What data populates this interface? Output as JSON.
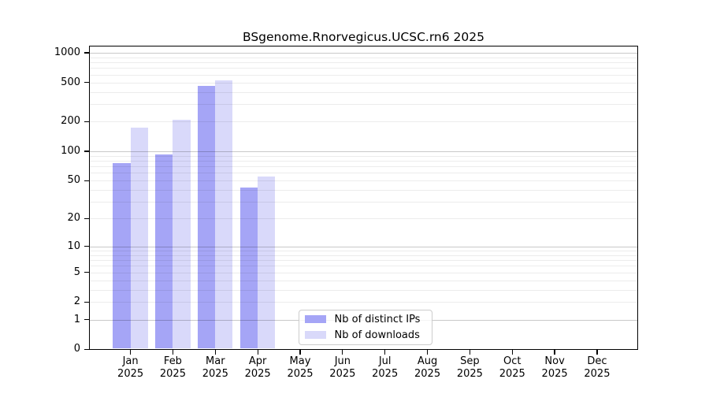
{
  "chart_data": {
    "type": "bar",
    "title": "BSgenome.Rnorvegicus.UCSC.rn6 2025",
    "categories": [
      "Jan",
      "Feb",
      "Mar",
      "Apr",
      "May",
      "Jun",
      "Jul",
      "Aug",
      "Sep",
      "Oct",
      "Nov",
      "Dec"
    ],
    "category_year": "2025",
    "series": [
      {
        "name": "Nb of distinct IPs",
        "color": "#a5a5f6",
        "values": [
          75,
          93,
          460,
          42,
          0,
          0,
          0,
          0,
          0,
          0,
          0,
          0
        ]
      },
      {
        "name": "Nb of downloads",
        "color": "#d9d9fa",
        "values": [
          173,
          208,
          529,
          55,
          0,
          0,
          0,
          0,
          0,
          0,
          0,
          0
        ]
      }
    ],
    "y_scale": "log1p",
    "y_tick_labels": [
      0,
      1,
      2,
      5,
      10,
      20,
      50,
      100,
      200,
      500,
      1000
    ],
    "y_major_gridlines": [
      1,
      10,
      100,
      1000
    ],
    "ylim": [
      0,
      1200
    ],
    "xlabel": "",
    "ylabel": "",
    "grid": "horizontal major+minor, drawn over bars",
    "legend_position": "lower center inside plot",
    "colors": {
      "bar_distinct_ips": "#a5a5f6",
      "bar_downloads": "#d9d9fa",
      "axis": "#000000",
      "legend_border": "#cccccc"
    }
  }
}
